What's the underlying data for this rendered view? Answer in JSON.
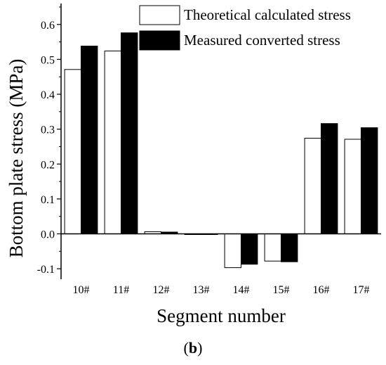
{
  "chart_data": {
    "type": "bar",
    "categories": [
      "10#",
      "11#",
      "12#",
      "13#",
      "14#",
      "15#",
      "16#",
      "17#"
    ],
    "series": [
      {
        "name": "Theoretical calculated stress",
        "values": [
          0.471,
          0.524,
          0.006,
          -0.002,
          -0.097,
          -0.078,
          0.274,
          0.271
        ],
        "color": "#ffffff"
      },
      {
        "name": "Measured converted stress",
        "values": [
          0.538,
          0.576,
          0.005,
          -0.002,
          -0.087,
          -0.08,
          0.316,
          0.304
        ],
        "color": "#000000"
      }
    ],
    "xlabel": "Segment number",
    "ylabel": "Bottom plate stress (MPa)",
    "ylim": [
      -0.13,
      0.66
    ],
    "yticks": [
      "-0.1",
      "0.0",
      "0.1",
      "0.2",
      "0.3",
      "0.4",
      "0.5",
      "0.6"
    ],
    "grid": false,
    "legend_position": "top-right"
  },
  "caption": {
    "open": "(",
    "letter": "b",
    "close": ")"
  }
}
